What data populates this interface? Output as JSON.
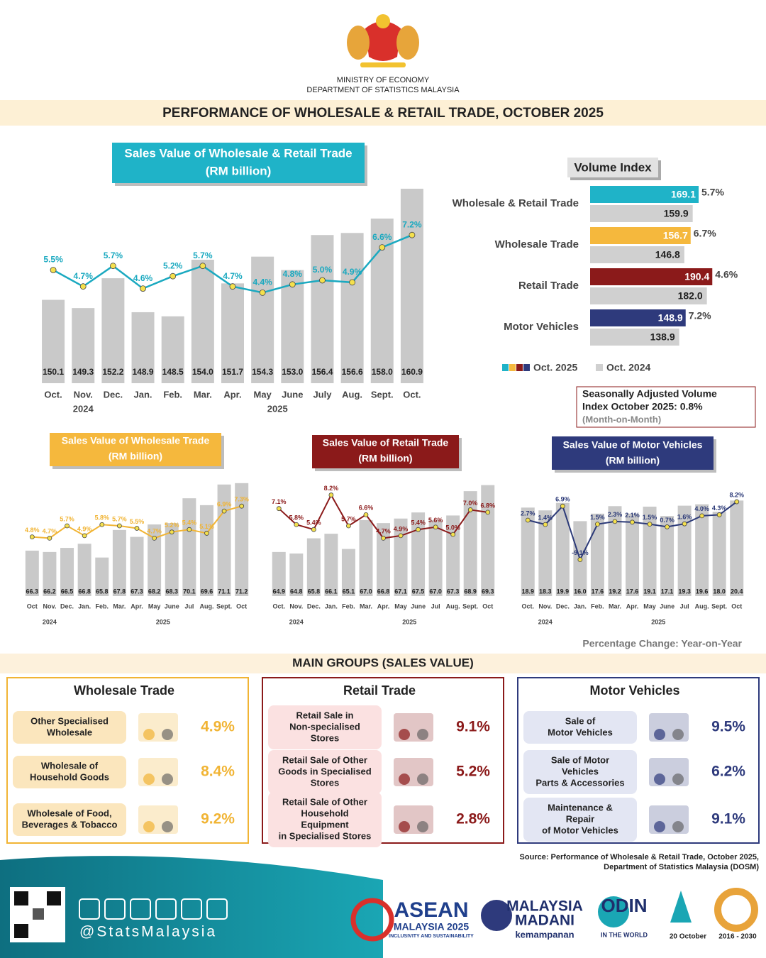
{
  "header": {
    "ministry": "MINISTRY OF ECONOMY",
    "department": "DEPARTMENT OF STATISTICS MALAYSIA",
    "title": "PERFORMANCE OF WHOLESALE & RETAIL TRADE, OCTOBER 2025"
  },
  "chart_data": [
    {
      "type": "combo",
      "title": "Sales Value of Wholesale & Retail Trade",
      "subtitle": "(RM billion)",
      "title_color": "#1fb3c8",
      "categories": [
        "Oct.",
        "Nov.",
        "Dec.",
        "Jan.",
        "Feb.",
        "Mar.",
        "Apr.",
        "May",
        "June",
        "July",
        "Aug.",
        "Sept.",
        "Oct."
      ],
      "year_labels": [
        "2024",
        "2025"
      ],
      "series": [
        {
          "type": "bar",
          "color": "#c9c9c9",
          "values": [
            150.1,
            149.3,
            152.2,
            148.9,
            148.5,
            154.0,
            151.7,
            154.3,
            153.0,
            156.4,
            156.6,
            158.0,
            160.9
          ],
          "value_labels": [
            "150.1",
            "149.3",
            "152.2",
            "148.9",
            "148.5",
            "154.0",
            "151.7",
            "154.3",
            "153.0",
            "156.4",
            "156.6",
            "158.0",
            "160.9"
          ]
        },
        {
          "type": "line",
          "axis": "y2",
          "color": "#1aa9c0",
          "marker_color": "#f4e04d",
          "values": [
            5.5,
            4.7,
            5.7,
            4.6,
            5.2,
            5.7,
            4.7,
            4.4,
            4.8,
            5.0,
            4.9,
            6.6,
            7.2
          ],
          "value_labels": [
            "5.5%",
            "4.7%",
            "5.7%",
            "4.6%",
            "5.2%",
            "5.7%",
            "4.7%",
            "4.4%",
            "4.8%",
            "5.0%",
            "4.9%",
            "6.6%",
            "7.2%"
          ]
        }
      ],
      "ylim": [
        142,
        162
      ],
      "y2lim": [
        0,
        10
      ]
    },
    {
      "type": "combo",
      "title": "Sales Value of Wholesale Trade",
      "subtitle": "(RM billion)",
      "title_color": "#f5b83d",
      "categories": [
        "Oct",
        "Nov.",
        "Dec.",
        "Jan.",
        "Feb.",
        "Mar.",
        "Apr.",
        "May",
        "June",
        "Jul",
        "Aug.",
        "Sept.",
        "Oct"
      ],
      "year_labels": [
        "2024",
        "2025"
      ],
      "series": [
        {
          "type": "bar",
          "color": "#c9c9c9",
          "values": [
            66.3,
            66.2,
            66.5,
            66.8,
            65.8,
            67.8,
            67.3,
            68.2,
            68.3,
            70.1,
            69.6,
            71.1,
            71.2
          ]
        },
        {
          "type": "line",
          "axis": "y2",
          "color": "#f1b434",
          "marker_color": "#f4e04d",
          "values": [
            4.8,
            4.7,
            5.7,
            4.9,
            5.8,
            5.7,
            5.5,
            4.7,
            5.2,
            5.4,
            5.1,
            6.9,
            7.3
          ],
          "value_labels": [
            "4.8%",
            "4.7%",
            "5.7%",
            "4.9%",
            "5.8%",
            "5.7%",
            "5.5%",
            "4.7%",
            "5.2%",
            "5.4%",
            "5.1%",
            "6.9%",
            "7.3%"
          ]
        }
      ],
      "ylim": [
        63,
        71.5
      ],
      "y2lim": [
        0,
        9.5
      ]
    },
    {
      "type": "combo",
      "title": "Sales Value of Retail Trade",
      "subtitle": "(RM billion)",
      "title_color": "#8b1a1a",
      "categories": [
        "Oct.",
        "Nov.",
        "Dec.",
        "Jan.",
        "Feb.",
        "Mar.",
        "Apr.",
        "May",
        "June",
        "Jul",
        "Aug.",
        "Sept.",
        "Oct"
      ],
      "year_labels": [
        "2024",
        "2025"
      ],
      "series": [
        {
          "type": "bar",
          "color": "#c9c9c9",
          "values": [
            64.9,
            64.8,
            65.8,
            66.1,
            65.1,
            67.0,
            66.8,
            67.1,
            67.5,
            67.0,
            67.3,
            68.9,
            69.3
          ],
          "value_labels": [
            "64.9",
            "64.8",
            "65.8",
            "66.1",
            "65.1",
            "67.0",
            "66.8",
            "67.1",
            "67.5",
            "67.0",
            "67.3",
            "68.9",
            "69.3"
          ]
        },
        {
          "type": "line",
          "axis": "y2",
          "color": "#8b1a1a",
          "marker_color": "#f4e04d",
          "values": [
            7.1,
            5.8,
            5.4,
            8.2,
            5.7,
            6.6,
            4.7,
            4.9,
            5.4,
            5.6,
            5.0,
            7.0,
            6.8
          ],
          "value_labels": [
            "7.1%",
            "5.8%",
            "5.4%",
            "8.2%",
            "5.7%",
            "6.6%",
            "4.7%",
            "4.9%",
            "5.4%",
            "5.6%",
            "5.0%",
            "7.0%",
            "6.8%"
          ]
        }
      ],
      "ylim": [
        62,
        69.7
      ],
      "y2lim": [
        0,
        9.5
      ]
    },
    {
      "type": "combo",
      "title": "Sales Value of Motor Vehicles",
      "subtitle": "(RM billion)",
      "title_color": "#2e3a7c",
      "categories": [
        "Oct.",
        "Nov.",
        "Dec.",
        "Jan.",
        "Feb.",
        "Mar.",
        "Apr.",
        "May",
        "June",
        "Jul",
        "Aug.",
        "Sept.",
        "Oct"
      ],
      "year_labels": [
        "2024",
        "2025"
      ],
      "series": [
        {
          "type": "bar",
          "color": "#c9c9c9",
          "values": [
            18.9,
            18.3,
            19.9,
            16.0,
            17.6,
            19.2,
            17.6,
            19.1,
            17.1,
            19.3,
            19.6,
            18.0,
            20.4
          ],
          "value_labels": [
            "18.9",
            "18.3",
            "19.9",
            "16.0",
            "17.6",
            "19.2",
            "17.6",
            "19.1",
            "17.1",
            "19.3",
            "19.6",
            "18.0",
            "20.4"
          ]
        },
        {
          "type": "line",
          "axis": "y2",
          "color": "#2c3a78",
          "marker_color": "#f4e04d",
          "values": [
            2.7,
            1.4,
            6.9,
            -9.1,
            1.5,
            2.3,
            2.1,
            1.5,
            0.7,
            1.6,
            4.0,
            4.3,
            8.2
          ],
          "value_labels": [
            "2.7%",
            "1.4%",
            "6.9%",
            "-9.1%",
            "1.5%",
            "2.3%",
            "2.1%",
            "1.5%",
            "0.7%",
            "1.6%",
            "4.0%",
            "4.3%",
            "8.2%"
          ]
        }
      ],
      "ylim": [
        0,
        25
      ],
      "y2lim": [
        -20,
        15
      ]
    },
    {
      "type": "barh",
      "title": "Volume Index",
      "categories": [
        "Wholesale & Retail Trade",
        "Wholesale Trade",
        "Retail Trade",
        "Motor Vehicles"
      ],
      "series": [
        {
          "name": "Oct. 2025",
          "colors": [
            "#1fb3c8",
            "#f5b83d",
            "#8b1a1a",
            "#2e3a7c"
          ],
          "values": [
            169.1,
            156.7,
            190.4,
            148.9
          ],
          "value_labels": [
            "169.1",
            "156.7",
            "190.4",
            "148.9"
          ]
        },
        {
          "name": "Oct. 2024",
          "color": "#d0d0d0",
          "values": [
            159.9,
            146.8,
            182.0,
            138.9
          ],
          "value_labels": [
            "159.9",
            "146.8",
            "182.0",
            "138.9"
          ]
        }
      ],
      "change": {
        "values": [
          5.7,
          6.7,
          4.6,
          7.2
        ],
        "value_labels": [
          "5.7%",
          "6.7%",
          "4.6%",
          "7.2%"
        ]
      },
      "xlim": [
        0,
        210
      ]
    }
  ],
  "notes": {
    "seasonal": [
      "Seasonally Adjusted Volume",
      "Index October 2025: 0.8%"
    ],
    "seasonal_sub": "(Month-on-Month)",
    "pct_note": "Percentage Change: Year-on-Year"
  },
  "main_groups": {
    "title": "MAIN GROUPS (SALES VALUE)",
    "panels": [
      {
        "title": "Wholesale Trade",
        "color": "#f1b434",
        "box_color": "#fbe6bd",
        "items": [
          {
            "label": [
              "Other Specialised",
              "Wholesale"
            ],
            "value": "4.9%"
          },
          {
            "label": [
              "Wholesale of",
              "Household Goods"
            ],
            "value": "8.4%"
          },
          {
            "label": [
              "Wholesale of Food,",
              "Beverages & Tobacco"
            ],
            "value": "9.2%"
          }
        ]
      },
      {
        "title": "Retail Trade",
        "color": "#8b1a1a",
        "box_color": "#fbe1e1",
        "items": [
          {
            "label": [
              "Retail Sale in",
              "Non-specialised",
              "Stores"
            ],
            "value": "9.1%"
          },
          {
            "label": [
              "Retail Sale of Other",
              "Goods in Specialised",
              "Stores"
            ],
            "value": "5.2%"
          },
          {
            "label": [
              "Retail Sale of Other",
              "Household",
              "Equipment",
              "in Specialised Stores"
            ],
            "value": "2.8%"
          }
        ]
      },
      {
        "title": "Motor Vehicles",
        "color": "#2e3a7c",
        "box_color": "#e3e6f3",
        "items": [
          {
            "label": [
              "Sale of",
              "Motor Vehicles"
            ],
            "value": "9.5%"
          },
          {
            "label": [
              "Sale of Motor",
              "Vehicles",
              "Parts & Accessories"
            ],
            "value": "6.2%"
          },
          {
            "label": [
              "Maintenance &",
              "Repair",
              "of Motor Vehicles"
            ],
            "value": "9.1%"
          }
        ]
      }
    ]
  },
  "source": [
    "Source: Performance of Wholesale & Retail Trade, October 2025,",
    "Department of Statistics Malaysia (DOSM)"
  ],
  "footer": {
    "handle": "@StatsMalaysia",
    "logos": [
      "ASEAN",
      "MALAYSIA 2025",
      "INCLUSIVITY AND SUSTAINABILITY",
      "MALAYSIA",
      "MADANI",
      "kemampanan",
      "ODIN",
      "IN THE WORLD",
      "20 October",
      "2016 - 2030"
    ]
  }
}
